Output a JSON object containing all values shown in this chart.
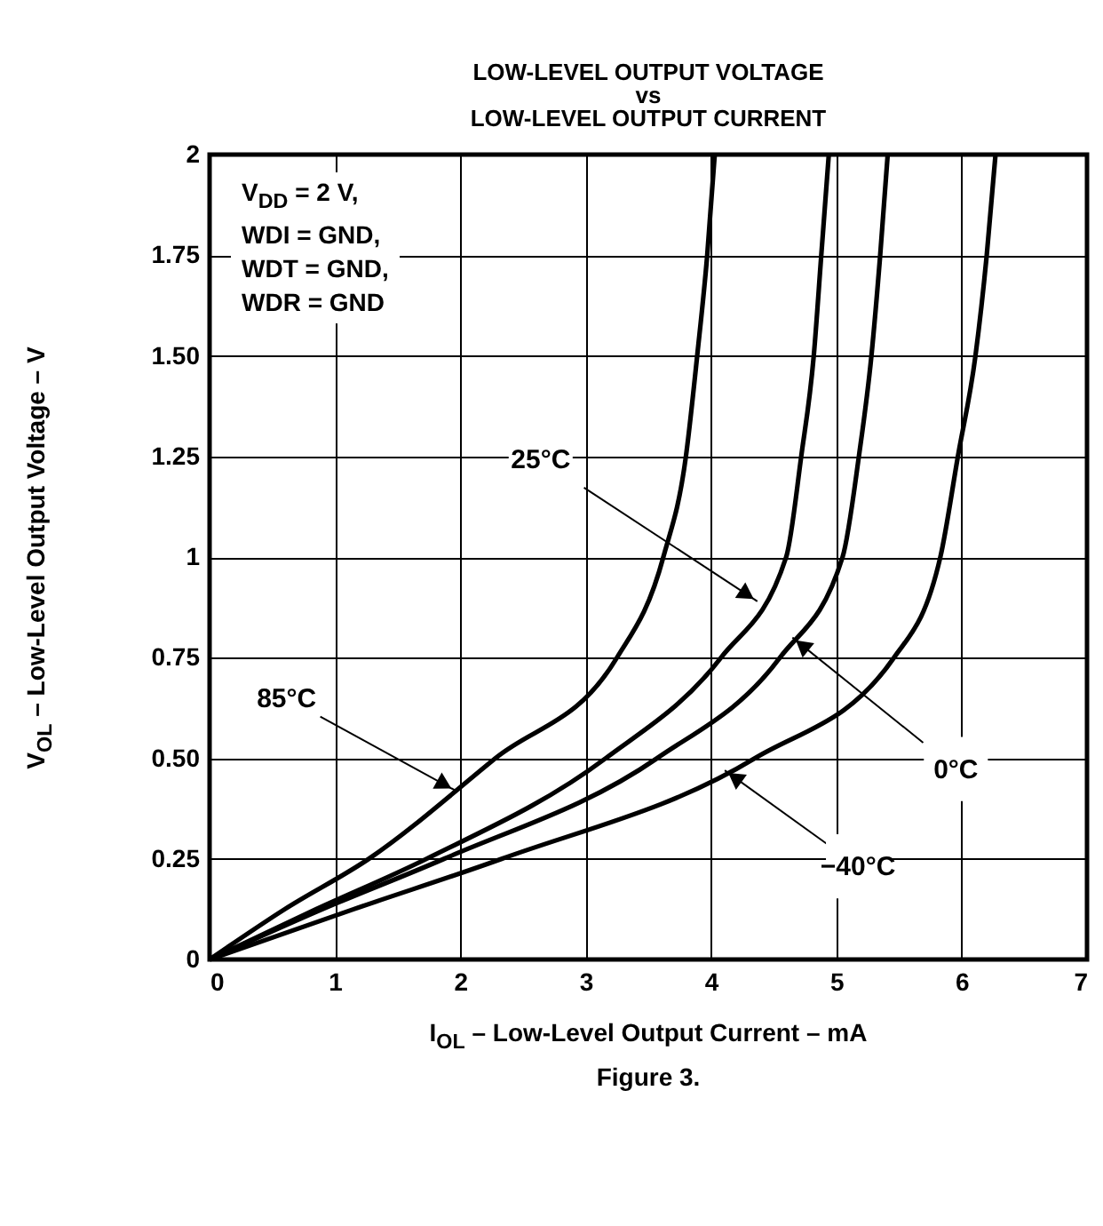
{
  "chart_data": {
    "type": "line",
    "title": "LOW-LEVEL OUTPUT VOLTAGE\nvs\nLOW-LEVEL OUTPUT CURRENT",
    "xlabel": "I$_{OL}$ – Low-Level Output Current – mA",
    "ylabel": "V$_{OL}$ – Low-Level Output Voltage – V",
    "annotations": [
      "V$_{DD}$ = 2 V,",
      "WDI = GND,",
      "WDT = GND,",
      "WDR = GND",
      {
        "text": "85°C",
        "x": 1.96,
        "y": 0.42
      },
      {
        "text": "25°C",
        "x": 4.37,
        "y": 0.89
      },
      {
        "text": "0°C",
        "x": 4.65,
        "y": 0.8
      },
      {
        "text": "−40°C",
        "x": 4.11,
        "y": 0.47
      },
      "Figure 3."
    ],
    "series": [
      {
        "color": "#000000",
        "x": [
          0,
          0.6,
          1.27,
          2.28,
          3.25,
          3.62,
          3.8,
          3.89,
          3.97,
          4.03
        ],
        "values": [
          0,
          0.125,
          0.25,
          0.5,
          0.75,
          1.0,
          1.25,
          1.5,
          1.75,
          2.0
        ]
      },
      {
        "color": "#000000",
        "x": [
          0,
          0.85,
          1.73,
          3.16,
          4.08,
          4.6,
          4.72,
          4.82,
          4.88,
          4.94
        ],
        "values": [
          0,
          0.125,
          0.25,
          0.5,
          0.75,
          1.0,
          1.25,
          1.5,
          1.75,
          2.0
        ]
      },
      {
        "color": "#000000",
        "x": [
          0,
          0.9,
          1.87,
          3.57,
          4.55,
          5.05,
          5.18,
          5.28,
          5.35,
          5.41
        ],
        "values": [
          0,
          0.125,
          0.25,
          0.5,
          0.75,
          1.0,
          1.25,
          1.5,
          1.75,
          2.0
        ]
      },
      {
        "color": "#000000",
        "x": [
          0,
          1.15,
          2.33,
          4.35,
          5.46,
          5.83,
          5.97,
          6.11,
          6.2,
          6.27
        ],
        "values": [
          0,
          0.125,
          0.25,
          0.5,
          0.75,
          1.0,
          1.25,
          1.5,
          1.75,
          2.0
        ]
      }
    ],
    "xlim": [
      0,
      7
    ],
    "xticks": [
      0,
      1,
      2,
      3,
      4,
      5,
      6,
      7
    ],
    "ylim": [
      0,
      2
    ],
    "yticks": [
      0,
      0.25,
      {
        "value": 0.5,
        "label": "0.50"
      },
      0.75,
      1,
      1.25,
      {
        "value": 1.5,
        "label": "1.50"
      },
      1.75,
      2
    ],
    "grid": true,
    "line_style": "solid",
    "marker": "none"
  }
}
